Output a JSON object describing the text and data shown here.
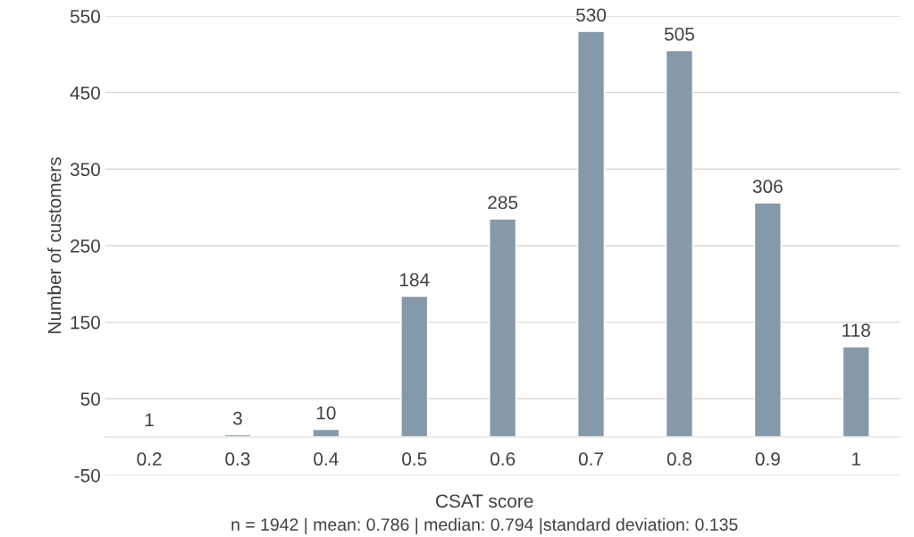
{
  "chart_data": {
    "type": "bar",
    "xlabel": "CSAT score",
    "ylabel": "Number of customers",
    "categories": [
      "0.2",
      "0.3",
      "0.4",
      "0.5",
      "0.6",
      "0.7",
      "0.8",
      "0.9",
      "1"
    ],
    "values": [
      1,
      3,
      10,
      184,
      285,
      530,
      505,
      306,
      118
    ],
    "color": "#8699a9",
    "ylim": [
      -50,
      550
    ],
    "yticks": [
      -50,
      50,
      150,
      250,
      350,
      450,
      550
    ],
    "grid": "y",
    "data_labels": true,
    "legend": false,
    "annotations": [
      "n = 1942 | mean: 0.786 | median: 0.794 |standard deviation: 0.135"
    ]
  }
}
